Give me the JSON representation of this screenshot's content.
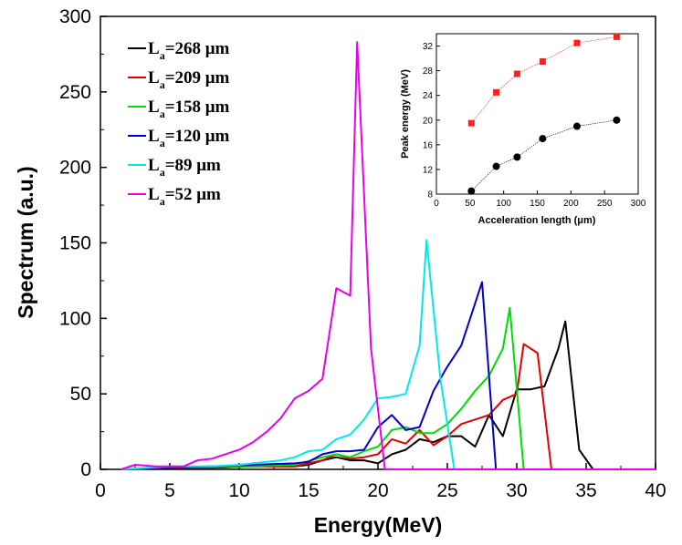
{
  "chart_data": [
    {
      "type": "line",
      "xlabel": "Energy(MeV)",
      "ylabel": "Spectrum (a.u.)",
      "xlim": [
        0,
        40
      ],
      "ylim": [
        0,
        300
      ],
      "xticks": [
        "0",
        "5",
        "10",
        "15",
        "20",
        "25",
        "30",
        "35",
        "40"
      ],
      "yticks": [
        "0",
        "50",
        "100",
        "150",
        "200",
        "250",
        "300"
      ],
      "legend_position": "top-left",
      "series": [
        {
          "name": "La=268 μm",
          "label_main": "L",
          "label_sub": "a",
          "label_rest": "=268 μm",
          "color": "#000000",
          "x": [
            1.5,
            5,
            8,
            11,
            14,
            15,
            16,
            17,
            18,
            19,
            20,
            21,
            22,
            23,
            24,
            25,
            26,
            27,
            28,
            29,
            30,
            31,
            32,
            33,
            33.5,
            34.5,
            35.5,
            37,
            40
          ],
          "values": [
            0,
            1,
            1,
            2,
            2,
            3,
            6,
            8,
            6,
            6,
            4,
            10,
            13,
            20,
            18,
            22,
            22,
            15,
            36,
            22,
            53,
            53,
            55,
            80,
            98,
            13,
            0,
            0,
            0
          ]
        },
        {
          "name": "La=209 μm",
          "label_main": "L",
          "label_sub": "a",
          "label_rest": "=209 μm",
          "color": "#e00000",
          "x": [
            1.5,
            5,
            8,
            11,
            14,
            15,
            16,
            17,
            18,
            19,
            20,
            21,
            22,
            23,
            24,
            25,
            26,
            27,
            28,
            29,
            30,
            30.5,
            31.5,
            32.5,
            34,
            40
          ],
          "values": [
            0,
            1,
            1,
            2,
            2,
            4,
            6,
            10,
            7,
            8,
            10,
            20,
            17,
            26,
            16,
            22,
            30,
            33,
            36,
            46,
            50,
            83,
            77,
            0,
            0,
            0
          ]
        },
        {
          "name": "La=158 μm",
          "label_main": "L",
          "label_sub": "a",
          "label_rest": "=158 μm",
          "color": "#00dd00",
          "x": [
            1.5,
            5,
            8,
            11,
            14,
            16,
            17,
            18,
            19,
            20,
            21,
            22,
            23,
            24,
            25,
            26,
            27,
            28,
            29,
            29.5,
            30.5,
            32,
            40
          ],
          "values": [
            0,
            1,
            2,
            2,
            3,
            8,
            10,
            8,
            12,
            15,
            26,
            28,
            24,
            24,
            30,
            40,
            52,
            62,
            80,
            107,
            0,
            0,
            0
          ]
        },
        {
          "name": "La=120 μm",
          "label_main": "L",
          "label_sub": "a",
          "label_rest": "=120 μm",
          "color": "#0000c8",
          "x": [
            1.5,
            5,
            8,
            11,
            14,
            15,
            16,
            17,
            18,
            19,
            20,
            21,
            22,
            23,
            24,
            25,
            26,
            27,
            27.5,
            28.5,
            29.5,
            40
          ],
          "values": [
            0,
            1,
            2,
            3,
            4,
            5,
            10,
            12,
            12,
            13,
            28,
            36,
            26,
            28,
            52,
            68,
            82,
            110,
            124,
            0,
            0,
            0
          ]
        },
        {
          "name": "La=89 μm",
          "label_main": "L",
          "label_sub": "a",
          "label_rest": "=89 μm",
          "color": "#00e8e8",
          "x": [
            1.5,
            5,
            8,
            10,
            12,
            13,
            14,
            15,
            16,
            17,
            18,
            19,
            20,
            21,
            22,
            23,
            23.5,
            24.5,
            25.5,
            27,
            40
          ],
          "values": [
            0,
            2,
            2,
            3,
            5,
            6,
            8,
            12,
            13,
            20,
            23,
            33,
            47,
            48,
            50,
            82,
            152,
            60,
            0,
            0,
            0
          ]
        },
        {
          "name": "La=52 μm",
          "label_main": "L",
          "label_sub": "a",
          "label_rest": "=52 μm",
          "color": "#e800e8",
          "x": [
            1.5,
            2.5,
            4,
            6,
            7,
            8,
            9,
            10,
            11,
            12,
            13,
            14,
            15,
            16,
            17,
            18,
            18.5,
            19.5,
            20.5,
            22,
            40
          ],
          "values": [
            0,
            3,
            2,
            2,
            6,
            7,
            10,
            13,
            18,
            25,
            34,
            47,
            52,
            60,
            120,
            115,
            283,
            80,
            0,
            0,
            0
          ]
        }
      ]
    },
    {
      "type": "scatter",
      "xlabel": "Acceleration length (μm)",
      "ylabel": "Peak energy (MeV)",
      "xlim": [
        0,
        300
      ],
      "ylim": [
        8,
        34
      ],
      "xticks": [
        "0",
        "50",
        "100",
        "150",
        "200",
        "250",
        "300"
      ],
      "yticks": [
        "8",
        "12",
        "16",
        "20",
        "24",
        "28",
        "32"
      ],
      "series": [
        {
          "name": "red squares",
          "color": "#ff2020",
          "x": [
            52,
            89,
            120,
            158,
            209,
            268
          ],
          "values": [
            19.5,
            24.5,
            27.5,
            29.5,
            32.5,
            33.5
          ]
        },
        {
          "name": "black circles",
          "color": "#000000",
          "x": [
            52,
            89,
            120,
            158,
            209,
            268
          ],
          "values": [
            8.5,
            12.5,
            14,
            17,
            19,
            20
          ]
        }
      ]
    }
  ]
}
